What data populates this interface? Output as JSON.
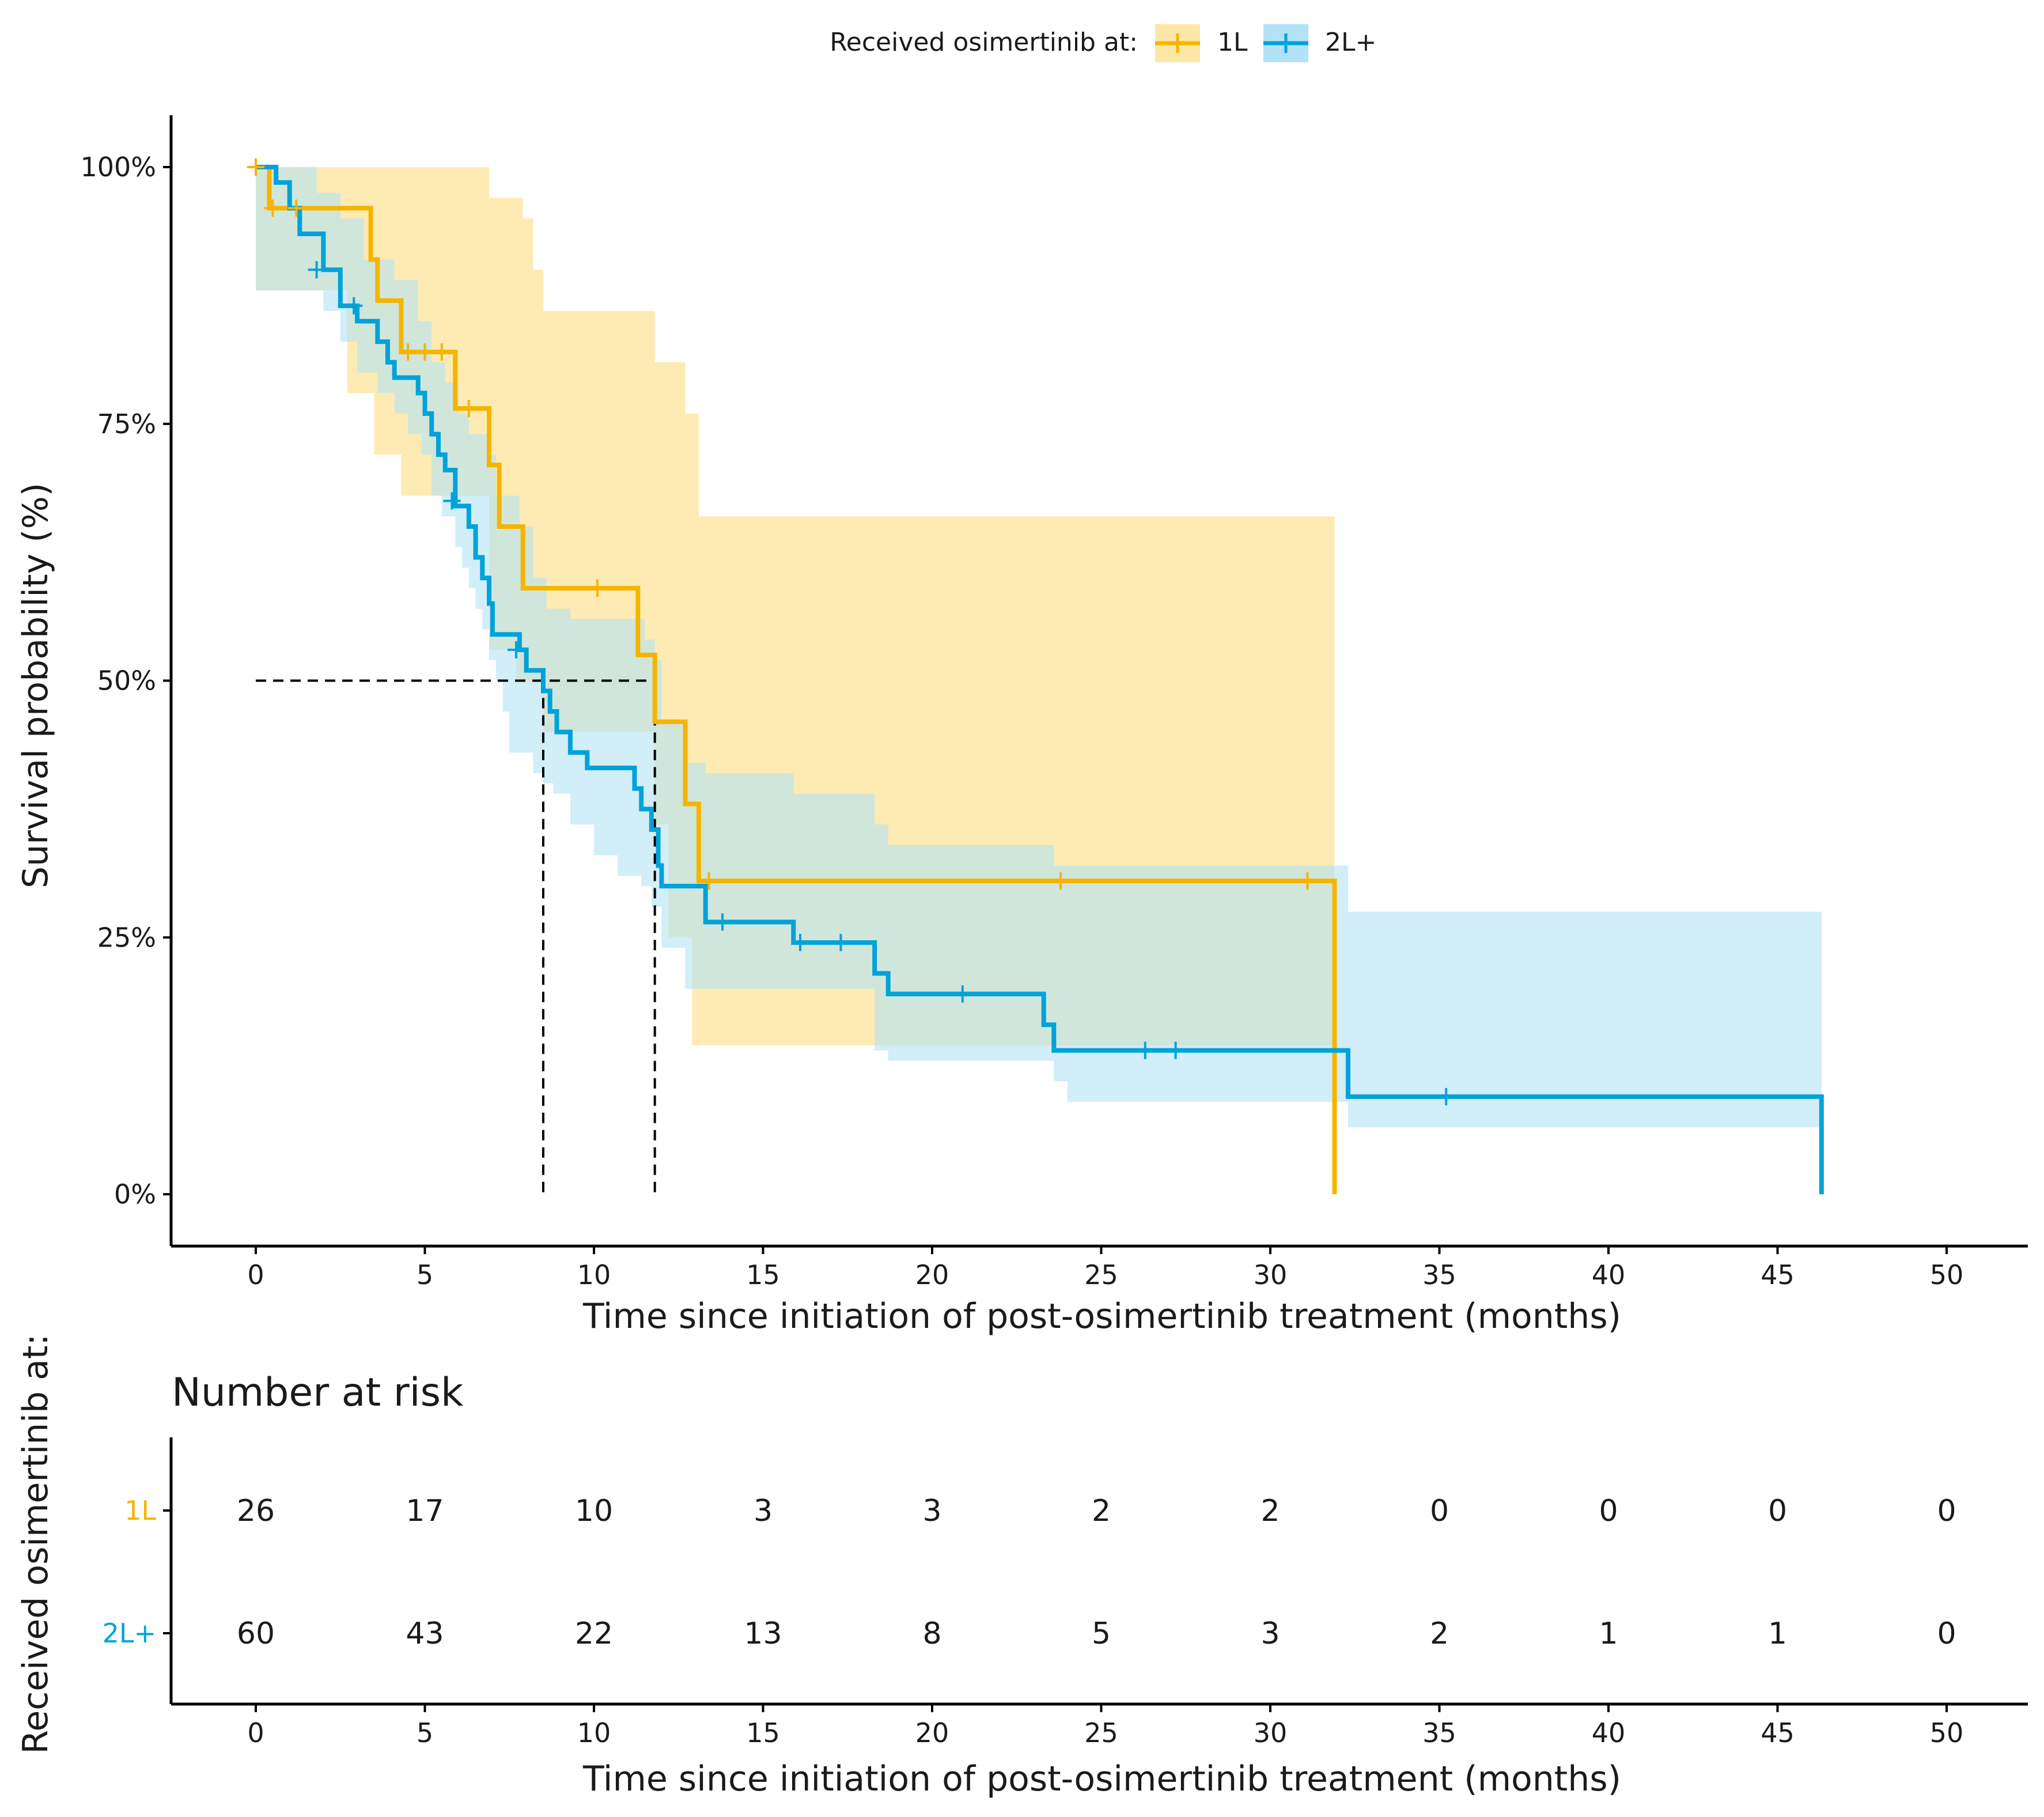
{
  "chart_data": {
    "type": "line",
    "subtype": "kaplan-meier",
    "legend": {
      "title": "Received osimertinib at:",
      "position": "top",
      "entries": [
        {
          "label": "1L",
          "color": "#F5B400"
        },
        {
          "label": "2L+",
          "color": "#00A2DA"
        }
      ]
    },
    "ylabel": "Survival probability (%)",
    "xlabel": "Time since initiation of post-osimertinib treatment (months)",
    "xlim": [
      0,
      50
    ],
    "ylim": [
      0,
      100
    ],
    "x_ticks": [
      0,
      5,
      10,
      15,
      20,
      25,
      30,
      35,
      40,
      45,
      50
    ],
    "x_tick_labels": [
      "0",
      "5",
      "10",
      "15",
      "20",
      "25",
      "30",
      "35",
      "40",
      "45",
      "50"
    ],
    "y_ticks": [
      0,
      25,
      50,
      75,
      100
    ],
    "y_tick_labels": [
      "0%",
      "25%",
      "50%",
      "75%",
      "100%"
    ],
    "grid": false,
    "median_reference": {
      "y": 50,
      "x_values": [
        8.5,
        11.8
      ]
    },
    "series": [
      {
        "name": "1L",
        "color": "#F5B400",
        "fill": "#FDE7A6",
        "steps": [
          [
            0,
            100
          ],
          [
            0.4,
            96
          ],
          [
            3.4,
            91
          ],
          [
            3.6,
            87
          ],
          [
            4.3,
            82
          ],
          [
            5.9,
            76.5
          ],
          [
            6.9,
            71
          ],
          [
            7.2,
            65
          ],
          [
            7.9,
            59
          ],
          [
            11.3,
            52.5
          ],
          [
            11.8,
            46
          ],
          [
            12.7,
            38
          ],
          [
            13.1,
            30.5
          ],
          [
            31.9,
            0
          ]
        ],
        "censor": [
          [
            0,
            100
          ],
          [
            0.5,
            96
          ],
          [
            1.2,
            96
          ],
          [
            4.5,
            82
          ],
          [
            5,
            82
          ],
          [
            5.5,
            82
          ],
          [
            6.3,
            76.5
          ],
          [
            10.1,
            59
          ],
          [
            13.4,
            30.5
          ],
          [
            23.8,
            30.5
          ],
          [
            31.1,
            30.5
          ]
        ],
        "ci_upper_steps": [
          [
            0,
            100
          ],
          [
            0.9,
            100
          ],
          [
            4.3,
            100
          ],
          [
            5.9,
            100
          ],
          [
            6.9,
            97
          ],
          [
            7.9,
            95
          ],
          [
            8.2,
            90
          ],
          [
            8.5,
            86
          ],
          [
            11.8,
            81
          ],
          [
            12.7,
            76
          ],
          [
            13.1,
            66
          ],
          [
            31.9,
            66
          ]
        ],
        "ci_lower_steps": [
          [
            0,
            88
          ],
          [
            0.9,
            88
          ],
          [
            2.7,
            78
          ],
          [
            3.5,
            72
          ],
          [
            4.3,
            68
          ],
          [
            6.9,
            53
          ],
          [
            7.7,
            50
          ],
          [
            8.5,
            45
          ],
          [
            11.8,
            36
          ],
          [
            12.2,
            25
          ],
          [
            12.9,
            14.5
          ],
          [
            15.8,
            14.5
          ],
          [
            18.5,
            14.5
          ],
          [
            31.9,
            14.5
          ]
        ],
        "end_x": 31.9
      },
      {
        "name": "2L+",
        "color": "#00A2DA",
        "fill": "#B2E2F5",
        "steps": [
          [
            0,
            100
          ],
          [
            0.6,
            98.5
          ],
          [
            1,
            96
          ],
          [
            1.3,
            93.5
          ],
          [
            2,
            90
          ],
          [
            2.5,
            86.5
          ],
          [
            3,
            85
          ],
          [
            3.6,
            83
          ],
          [
            3.9,
            81
          ],
          [
            4.1,
            79.5
          ],
          [
            4.8,
            78
          ],
          [
            5,
            76
          ],
          [
            5.2,
            74
          ],
          [
            5.4,
            72
          ],
          [
            5.6,
            70.5
          ],
          [
            5.9,
            67
          ],
          [
            6.3,
            65
          ],
          [
            6.5,
            62
          ],
          [
            6.7,
            60
          ],
          [
            6.9,
            57.5
          ],
          [
            7,
            54.5
          ],
          [
            7.8,
            53
          ],
          [
            8,
            51
          ],
          [
            8.5,
            49
          ],
          [
            8.7,
            47
          ],
          [
            8.9,
            45
          ],
          [
            9.3,
            43
          ],
          [
            9.8,
            41.5
          ],
          [
            11.2,
            39.5
          ],
          [
            11.4,
            37.5
          ],
          [
            11.7,
            35.5
          ],
          [
            11.9,
            32
          ],
          [
            12,
            30
          ],
          [
            13.3,
            26.5
          ],
          [
            15.9,
            24.5
          ],
          [
            18.3,
            21.5
          ],
          [
            18.7,
            19.5
          ],
          [
            23.3,
            16.5
          ],
          [
            23.6,
            14
          ],
          [
            32.3,
            9.5
          ],
          [
            46.3,
            0
          ]
        ],
        "censor": [
          [
            1.8,
            90
          ],
          [
            2.9,
            86.5
          ],
          [
            5.8,
            67.5
          ],
          [
            7.7,
            53
          ],
          [
            13.8,
            26.5
          ],
          [
            16.1,
            24.5
          ],
          [
            17.3,
            24.5
          ],
          [
            20.9,
            19.5
          ],
          [
            26.3,
            14
          ],
          [
            27.2,
            14
          ],
          [
            35.2,
            9.5
          ]
        ],
        "ci_upper_steps": [
          [
            0,
            100
          ],
          [
            1,
            100
          ],
          [
            1.8,
            97.5
          ],
          [
            2.5,
            95
          ],
          [
            3.2,
            91
          ],
          [
            4.1,
            89
          ],
          [
            4.8,
            85
          ],
          [
            5.2,
            81
          ],
          [
            5.6,
            79
          ],
          [
            6,
            76
          ],
          [
            6.3,
            74
          ],
          [
            6.9,
            72
          ],
          [
            7.1,
            68
          ],
          [
            7.8,
            65
          ],
          [
            8.2,
            60
          ],
          [
            8.6,
            57
          ],
          [
            9.3,
            56
          ],
          [
            11.5,
            54
          ],
          [
            11.8,
            52
          ],
          [
            12,
            46
          ],
          [
            12.7,
            42
          ],
          [
            13.3,
            41
          ],
          [
            15.9,
            39
          ],
          [
            18.3,
            36
          ],
          [
            18.7,
            34
          ],
          [
            23.6,
            32
          ],
          [
            32.3,
            27.5
          ],
          [
            46.3,
            27.5
          ]
        ],
        "ci_lower_steps": [
          [
            0,
            88
          ],
          [
            1,
            88
          ],
          [
            2,
            86
          ],
          [
            2.5,
            83
          ],
          [
            3,
            80
          ],
          [
            3.6,
            78
          ],
          [
            4.1,
            76
          ],
          [
            4.5,
            74
          ],
          [
            4.9,
            72
          ],
          [
            5.2,
            68
          ],
          [
            5.5,
            66
          ],
          [
            5.9,
            63
          ],
          [
            6.1,
            61
          ],
          [
            6.3,
            59
          ],
          [
            6.5,
            57
          ],
          [
            6.7,
            55
          ],
          [
            6.9,
            52
          ],
          [
            7.1,
            50
          ],
          [
            7.3,
            47
          ],
          [
            7.5,
            43
          ],
          [
            8,
            43
          ],
          [
            8.2,
            41
          ],
          [
            8.5,
            40
          ],
          [
            8.8,
            39
          ],
          [
            9.3,
            36
          ],
          [
            10,
            33
          ],
          [
            10.7,
            31
          ],
          [
            11.4,
            30
          ],
          [
            11.7,
            28
          ],
          [
            12,
            24
          ],
          [
            12.7,
            20
          ],
          [
            13.3,
            20
          ],
          [
            18.3,
            14
          ],
          [
            18.7,
            13
          ],
          [
            23.6,
            11
          ],
          [
            24,
            9
          ],
          [
            32.3,
            6.5
          ],
          [
            46.3,
            3
          ]
        ],
        "end_x": 46.3
      }
    ],
    "risk_table": {
      "title": "Number at risk",
      "ylabel": "Received osimertinib at:",
      "xlabel": "Time since initiation of post-osimertinib treatment (months)",
      "times": [
        0,
        5,
        10,
        15,
        20,
        25,
        30,
        35,
        40,
        45,
        50
      ],
      "rows": [
        {
          "label": "1L",
          "color": "#F5B400",
          "values": [
            "26",
            "17",
            "10",
            "3",
            "3",
            "2",
            "2",
            "0",
            "0",
            "0",
            "0"
          ]
        },
        {
          "label": "2L+",
          "color": "#00A2DA",
          "values": [
            "60",
            "43",
            "22",
            "13",
            "8",
            "5",
            "3",
            "2",
            "1",
            "1",
            "0"
          ]
        }
      ]
    }
  }
}
